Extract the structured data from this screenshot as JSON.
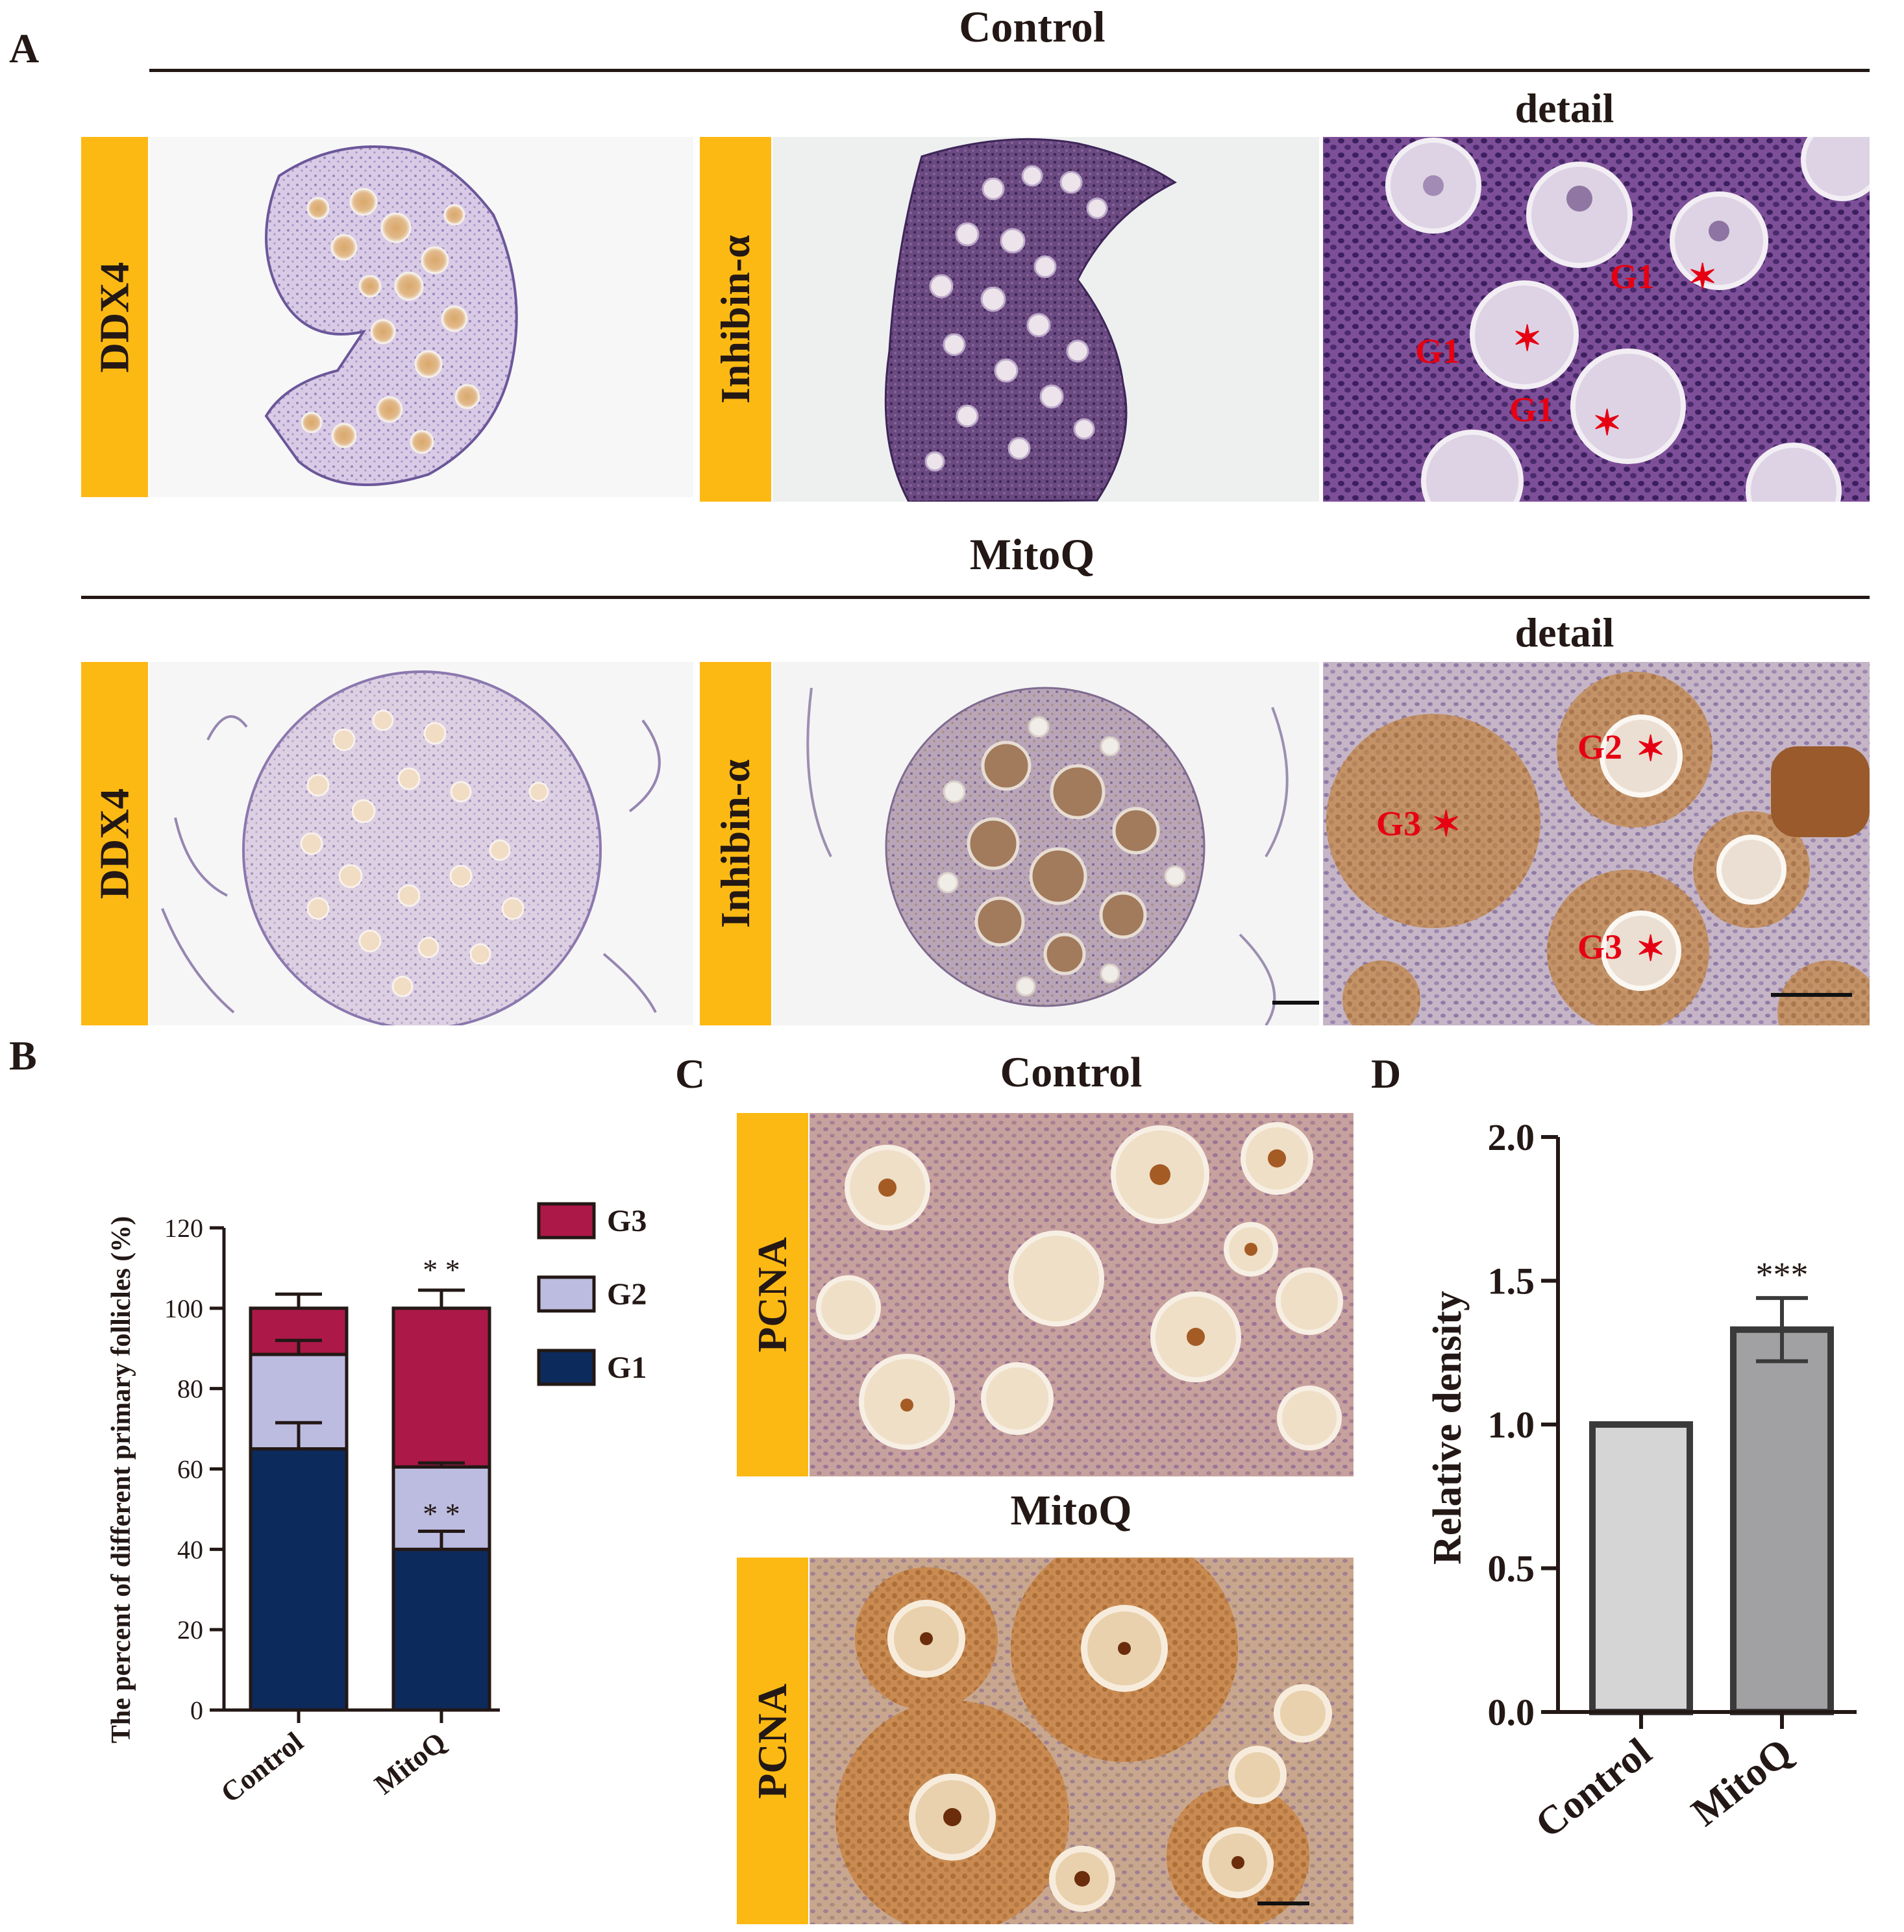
{
  "panels": {
    "A": "A",
    "B": "B",
    "C": "C",
    "D": "D"
  },
  "panel_a": {
    "control_title": "Control",
    "mitoq_title": "MitoQ",
    "detail_label": "detail",
    "ddx4_label": "DDX4",
    "inhibin_label": "Inhibin-α",
    "control_markers": [
      "G1",
      "G1",
      "G1"
    ],
    "mitoq_markers": [
      "G2",
      "G3",
      "G3"
    ],
    "star": "✶"
  },
  "panel_c": {
    "control_title": "Control",
    "mitoq_title": "MitoQ",
    "pcna_label": "PCNA"
  },
  "colors": {
    "label_bg": "#fdb913",
    "marker": "#e60012",
    "g1": "#0d2a5c",
    "g2": "#bcbbe0",
    "g3": "#ac1848",
    "bar_control": "#d5d5d5",
    "bar_mitoq": "#a1a1a3"
  },
  "chart_data": [
    {
      "id": "B",
      "type": "bar",
      "stacked": true,
      "categories": [
        "Control",
        "MitoQ"
      ],
      "series": [
        {
          "name": "G1",
          "values": [
            65,
            40
          ],
          "error": [
            6.5,
            4.5
          ]
        },
        {
          "name": "G2",
          "values": [
            23.5,
            20.5
          ],
          "error": [
            3.5,
            1.0
          ]
        },
        {
          "name": "G3",
          "values": [
            11.5,
            39.5
          ],
          "error": [
            3.5,
            4.5
          ]
        }
      ],
      "annotations": [
        {
          "category": "MitoQ",
          "series": "G2",
          "text": "* *"
        },
        {
          "category": "MitoQ",
          "series": "G3",
          "text": "* *"
        }
      ],
      "ylabel": "The percent of different primary follicles (%)",
      "xlabel": "",
      "ylim": [
        0,
        120
      ],
      "yticks": [
        "0",
        "20",
        "40",
        "60",
        "80",
        "100",
        "120"
      ],
      "legend": [
        "G3",
        "G2",
        "G1"
      ],
      "legend_position": "top-right"
    },
    {
      "id": "D",
      "type": "bar",
      "categories": [
        "Control",
        "MitoQ"
      ],
      "values": [
        1.0,
        1.33
      ],
      "error": [
        0,
        0.11
      ],
      "annotations": [
        {
          "category": "MitoQ",
          "text": "***"
        }
      ],
      "ylabel": "Relative density",
      "xlabel": "",
      "ylim": [
        0,
        2.0
      ],
      "yticks": [
        "0.0",
        "0.5",
        "1.0",
        "1.5",
        "2.0"
      ]
    }
  ]
}
